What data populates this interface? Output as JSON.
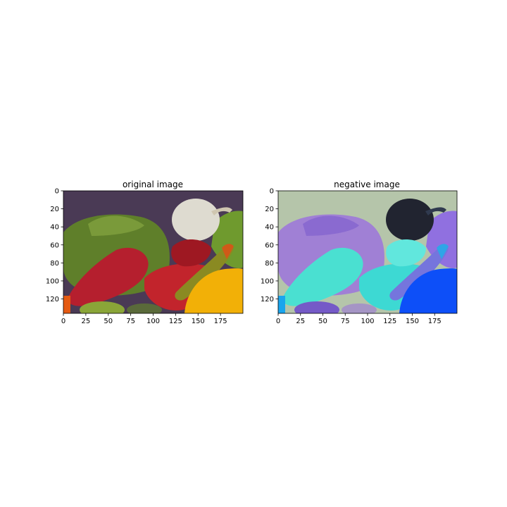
{
  "panels": [
    {
      "title": "original image",
      "variant": "original",
      "x_ticks": [
        0,
        25,
        50,
        75,
        100,
        125,
        150,
        175
      ],
      "y_ticks": [
        0,
        20,
        40,
        60,
        80,
        100,
        120
      ],
      "x_range": [
        0,
        200
      ],
      "y_range": [
        0,
        136
      ]
    },
    {
      "title": "negative image",
      "variant": "negative",
      "x_ticks": [
        0,
        25,
        50,
        75,
        100,
        125,
        150,
        175
      ],
      "y_ticks": [
        0,
        20,
        40,
        60,
        80,
        100,
        120
      ],
      "x_range": [
        0,
        200
      ],
      "y_range": [
        0,
        136
      ]
    }
  ],
  "colors": {
    "background_original": "#4a3a55",
    "green_pepper": "#5f7f2a",
    "red_pepper": "#b51f2e",
    "onion": "#dedbd0",
    "yellow_pepper": "#f2b007",
    "orange": "#e55a12",
    "background_negative": "#b5c5aa",
    "blue_pepper": "#a080d5",
    "cyan_pepper": "#4ae0d1",
    "dark_onion": "#212430",
    "deep_blue": "#0d4ff8"
  }
}
